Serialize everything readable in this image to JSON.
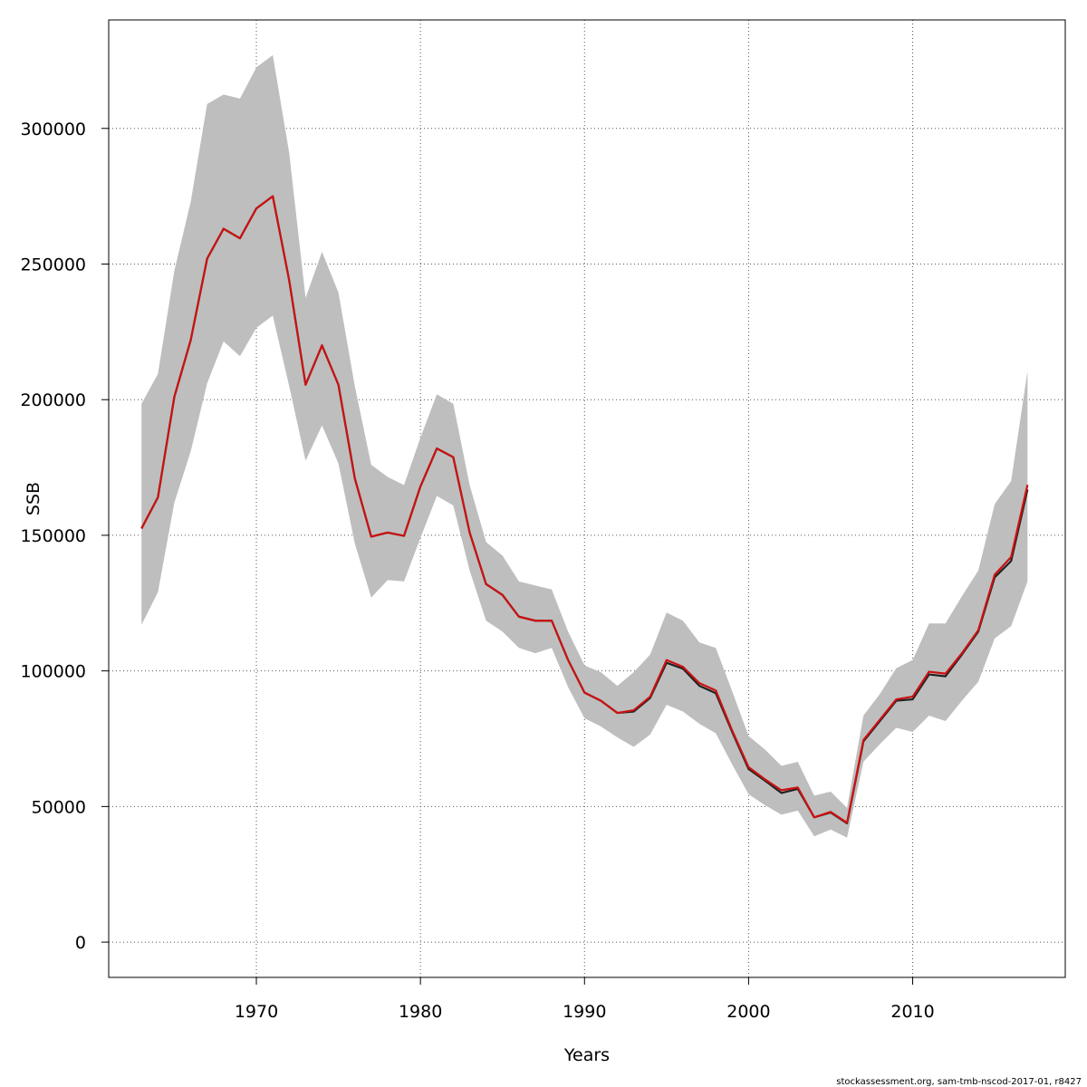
{
  "chart_data": {
    "type": "line",
    "title": "",
    "xlabel": "Years",
    "ylabel": "SSB",
    "xlim": [
      1961,
      2019.3
    ],
    "ylim": [
      -13000,
      340000
    ],
    "x_ticks": [
      1970,
      1980,
      1990,
      2000,
      2010
    ],
    "y_ticks": [
      0,
      50000,
      100000,
      150000,
      200000,
      250000,
      300000
    ],
    "x_tick_labels": [
      "1970",
      "1980",
      "1990",
      "2000",
      "2010"
    ],
    "y_tick_labels": [
      "0",
      "50000",
      "100000",
      "150000",
      "200000",
      "250000",
      "300000"
    ],
    "grid": true,
    "colors": {
      "band": "#bebebe",
      "line_dark": "#222222",
      "line_red": "#cc1111",
      "grid": "#555555"
    },
    "x": [
      1963,
      1964,
      1965,
      1966,
      1967,
      1968,
      1969,
      1970,
      1971,
      1972,
      1973,
      1974,
      1975,
      1976,
      1977,
      1978,
      1979,
      1980,
      1981,
      1982,
      1983,
      1984,
      1985,
      1986,
      1987,
      1988,
      1989,
      1990,
      1991,
      1992,
      1993,
      1994,
      1995,
      1996,
      1997,
      1998,
      1999,
      2000,
      2001,
      2002,
      2003,
      2004,
      2005,
      2006,
      2007,
      2008,
      2009,
      2010,
      2011,
      2012,
      2013,
      2014,
      2015,
      2016,
      2017
    ],
    "series": [
      {
        "values": [
          152500,
          164000,
          201000,
          222000,
          252000,
          263000,
          259500,
          270500,
          275000,
          244000,
          205500,
          220000,
          205500,
          171000,
          149500,
          151000,
          149800,
          168000,
          182000,
          178800,
          151000,
          132000,
          128000,
          120000,
          118500,
          118500,
          104000,
          92000,
          89000,
          84500,
          85000,
          90000,
          103000,
          100800,
          94500,
          91800,
          77500,
          63800,
          59500,
          55000,
          56500,
          46000,
          47800,
          43800,
          74000,
          81500,
          89000,
          89500,
          98700,
          98000,
          106000,
          114500,
          134500,
          140500,
          166900
        ],
        "lower": [
          117000,
          129000,
          162000,
          181000,
          206000,
          221500,
          216000,
          226500,
          231000,
          205000,
          177500,
          190500,
          176500,
          147000,
          127000,
          133500,
          133000,
          149000,
          164500,
          161000,
          137000,
          118500,
          114500,
          108500,
          106500,
          108500,
          94000,
          82500,
          79500,
          75500,
          72000,
          76500,
          87500,
          85000,
          80500,
          77000,
          65500,
          54500,
          50500,
          47000,
          48500,
          39000,
          41500,
          38500,
          66500,
          73000,
          79000,
          77500,
          83500,
          81500,
          89000,
          96000,
          112000,
          116500,
          133000
        ],
        "upper": [
          198500,
          209500,
          247500,
          273000,
          309000,
          312500,
          311000,
          322500,
          327000,
          291000,
          237500,
          254500,
          239500,
          205000,
          176000,
          171500,
          168500,
          186000,
          202000,
          198500,
          168500,
          147500,
          142500,
          133000,
          131500,
          130000,
          114500,
          102000,
          99500,
          94500,
          99500,
          106000,
          121500,
          118500,
          110500,
          108500,
          92500,
          76000,
          71000,
          65000,
          66500,
          54000,
          55500,
          49500,
          83500,
          91500,
          101000,
          104000,
          117500,
          117500,
          127500,
          137000,
          161500,
          170000,
          210500
        ]
      },
      {
        "values": [
          152500,
          164000,
          201000,
          222000,
          252000,
          263000,
          259500,
          270500,
          275000,
          244000,
          205500,
          220000,
          205500,
          171000,
          149500,
          151000,
          149800,
          168000,
          182000,
          178800,
          151000,
          132000,
          128000,
          120000,
          118500,
          118500,
          104000,
          92000,
          89000,
          84500,
          85500,
          90500,
          104000,
          101500,
          95500,
          92800,
          78000,
          64500,
          60000,
          56000,
          57000,
          46000,
          48000,
          44000,
          74500,
          82000,
          89500,
          90500,
          99700,
          99000,
          106500,
          115000,
          135500,
          142000,
          168600
        ]
      }
    ]
  },
  "footer": {
    "credit": "stockassessment.org, sam-tmb-nscod-2017-01, r8427"
  }
}
